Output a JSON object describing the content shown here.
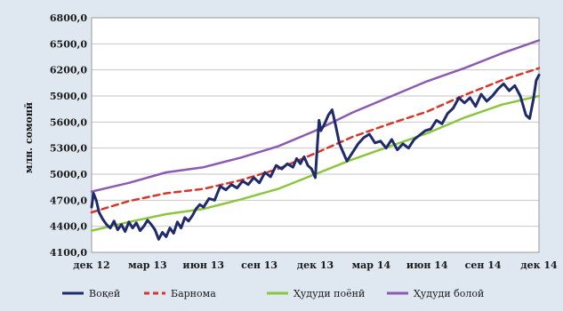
{
  "chart_data": {
    "type": "line",
    "title": "",
    "xlabel": "",
    "ylabel": "млн. сомонӣ",
    "ylim": [
      4100,
      6800
    ],
    "y_ticks": [
      "4100,0",
      "4400,0",
      "4700,0",
      "5000,0",
      "5300,0",
      "5600,0",
      "5900,0",
      "6200,0",
      "6500,0",
      "6800,0"
    ],
    "y_tick_values": [
      4100,
      4400,
      4700,
      5000,
      5300,
      5600,
      5900,
      6200,
      6500,
      6800
    ],
    "x_ticks": [
      "дек 12",
      "мар 13",
      "июн 13",
      "сен 13",
      "дек 13",
      "мар 14",
      "июн 14",
      "сен 14",
      "дек 14"
    ],
    "x_range_months": [
      0,
      24
    ],
    "grid": "horizontal",
    "legend_position": "bottom",
    "series": [
      {
        "name": "Воқеӣ",
        "color": "#1f2a6b",
        "style": "solid",
        "x": [
          0,
          0.1,
          0.25,
          0.4,
          0.6,
          0.8,
          1.0,
          1.2,
          1.4,
          1.6,
          1.8,
          2.0,
          2.2,
          2.4,
          2.6,
          2.8,
          3.0,
          3.2,
          3.4,
          3.6,
          3.8,
          4.0,
          4.2,
          4.4,
          4.6,
          4.8,
          5.0,
          5.2,
          5.4,
          5.6,
          5.8,
          6.0,
          6.3,
          6.6,
          6.9,
          7.2,
          7.5,
          7.8,
          8.1,
          8.4,
          8.7,
          9.0,
          9.3,
          9.6,
          9.9,
          10.2,
          10.5,
          10.8,
          11.0,
          11.2,
          11.4,
          11.6,
          11.8,
          12.0,
          12.1,
          12.2,
          12.3,
          12.5,
          12.7,
          12.9,
          13.1,
          13.3,
          13.5,
          13.7,
          14.0,
          14.3,
          14.6,
          14.9,
          15.2,
          15.5,
          15.8,
          16.1,
          16.4,
          16.7,
          17.0,
          17.3,
          17.6,
          17.9,
          18.2,
          18.5,
          18.8,
          19.1,
          19.4,
          19.7,
          20.0,
          20.3,
          20.6,
          20.9,
          21.2,
          21.5,
          21.8,
          22.1,
          22.4,
          22.7,
          23.0,
          23.3,
          23.5,
          23.7,
          23.85,
          24.0
        ],
        "y": [
          4620,
          4780,
          4700,
          4560,
          4480,
          4420,
          4380,
          4460,
          4360,
          4420,
          4340,
          4450,
          4380,
          4440,
          4350,
          4400,
          4470,
          4420,
          4360,
          4250,
          4330,
          4280,
          4380,
          4320,
          4450,
          4380,
          4500,
          4460,
          4520,
          4600,
          4650,
          4620,
          4720,
          4700,
          4860,
          4820,
          4880,
          4840,
          4920,
          4880,
          4960,
          4900,
          5020,
          4970,
          5100,
          5060,
          5120,
          5080,
          5180,
          5120,
          5200,
          5100,
          5060,
          4960,
          5300,
          5620,
          5500,
          5580,
          5680,
          5740,
          5550,
          5350,
          5250,
          5150,
          5250,
          5350,
          5420,
          5460,
          5360,
          5380,
          5300,
          5400,
          5280,
          5350,
          5300,
          5400,
          5450,
          5500,
          5520,
          5620,
          5580,
          5700,
          5760,
          5880,
          5820,
          5880,
          5780,
          5920,
          5840,
          5900,
          5980,
          6040,
          5960,
          6020,
          5900,
          5680,
          5640,
          5860,
          6080,
          6140
        ]
      },
      {
        "name": "Барнома",
        "color": "#d6372a",
        "style": "dashed",
        "x": [
          0,
          2,
          4,
          6,
          8,
          10,
          12,
          14,
          16,
          18,
          20,
          22,
          24
        ],
        "y": [
          4560,
          4690,
          4780,
          4830,
          4930,
          5060,
          5240,
          5430,
          5580,
          5720,
          5910,
          6080,
          6220
        ]
      },
      {
        "name": "Ҳудуди поёнӣ",
        "color": "#8cc63f",
        "style": "solid",
        "x": [
          0,
          2,
          4,
          6,
          8,
          10,
          12,
          14,
          16,
          18,
          20,
          22,
          24
        ],
        "y": [
          4350,
          4450,
          4540,
          4600,
          4710,
          4830,
          5000,
          5170,
          5320,
          5470,
          5650,
          5800,
          5900
        ]
      },
      {
        "name": "Ҳудуди болоӣ",
        "color": "#8b5bb1",
        "style": "solid",
        "x": [
          0,
          2,
          4,
          6,
          8,
          10,
          12,
          14,
          16,
          18,
          20,
          22,
          24
        ],
        "y": [
          4800,
          4900,
          5020,
          5080,
          5190,
          5320,
          5500,
          5710,
          5890,
          6070,
          6220,
          6390,
          6540
        ]
      }
    ]
  }
}
